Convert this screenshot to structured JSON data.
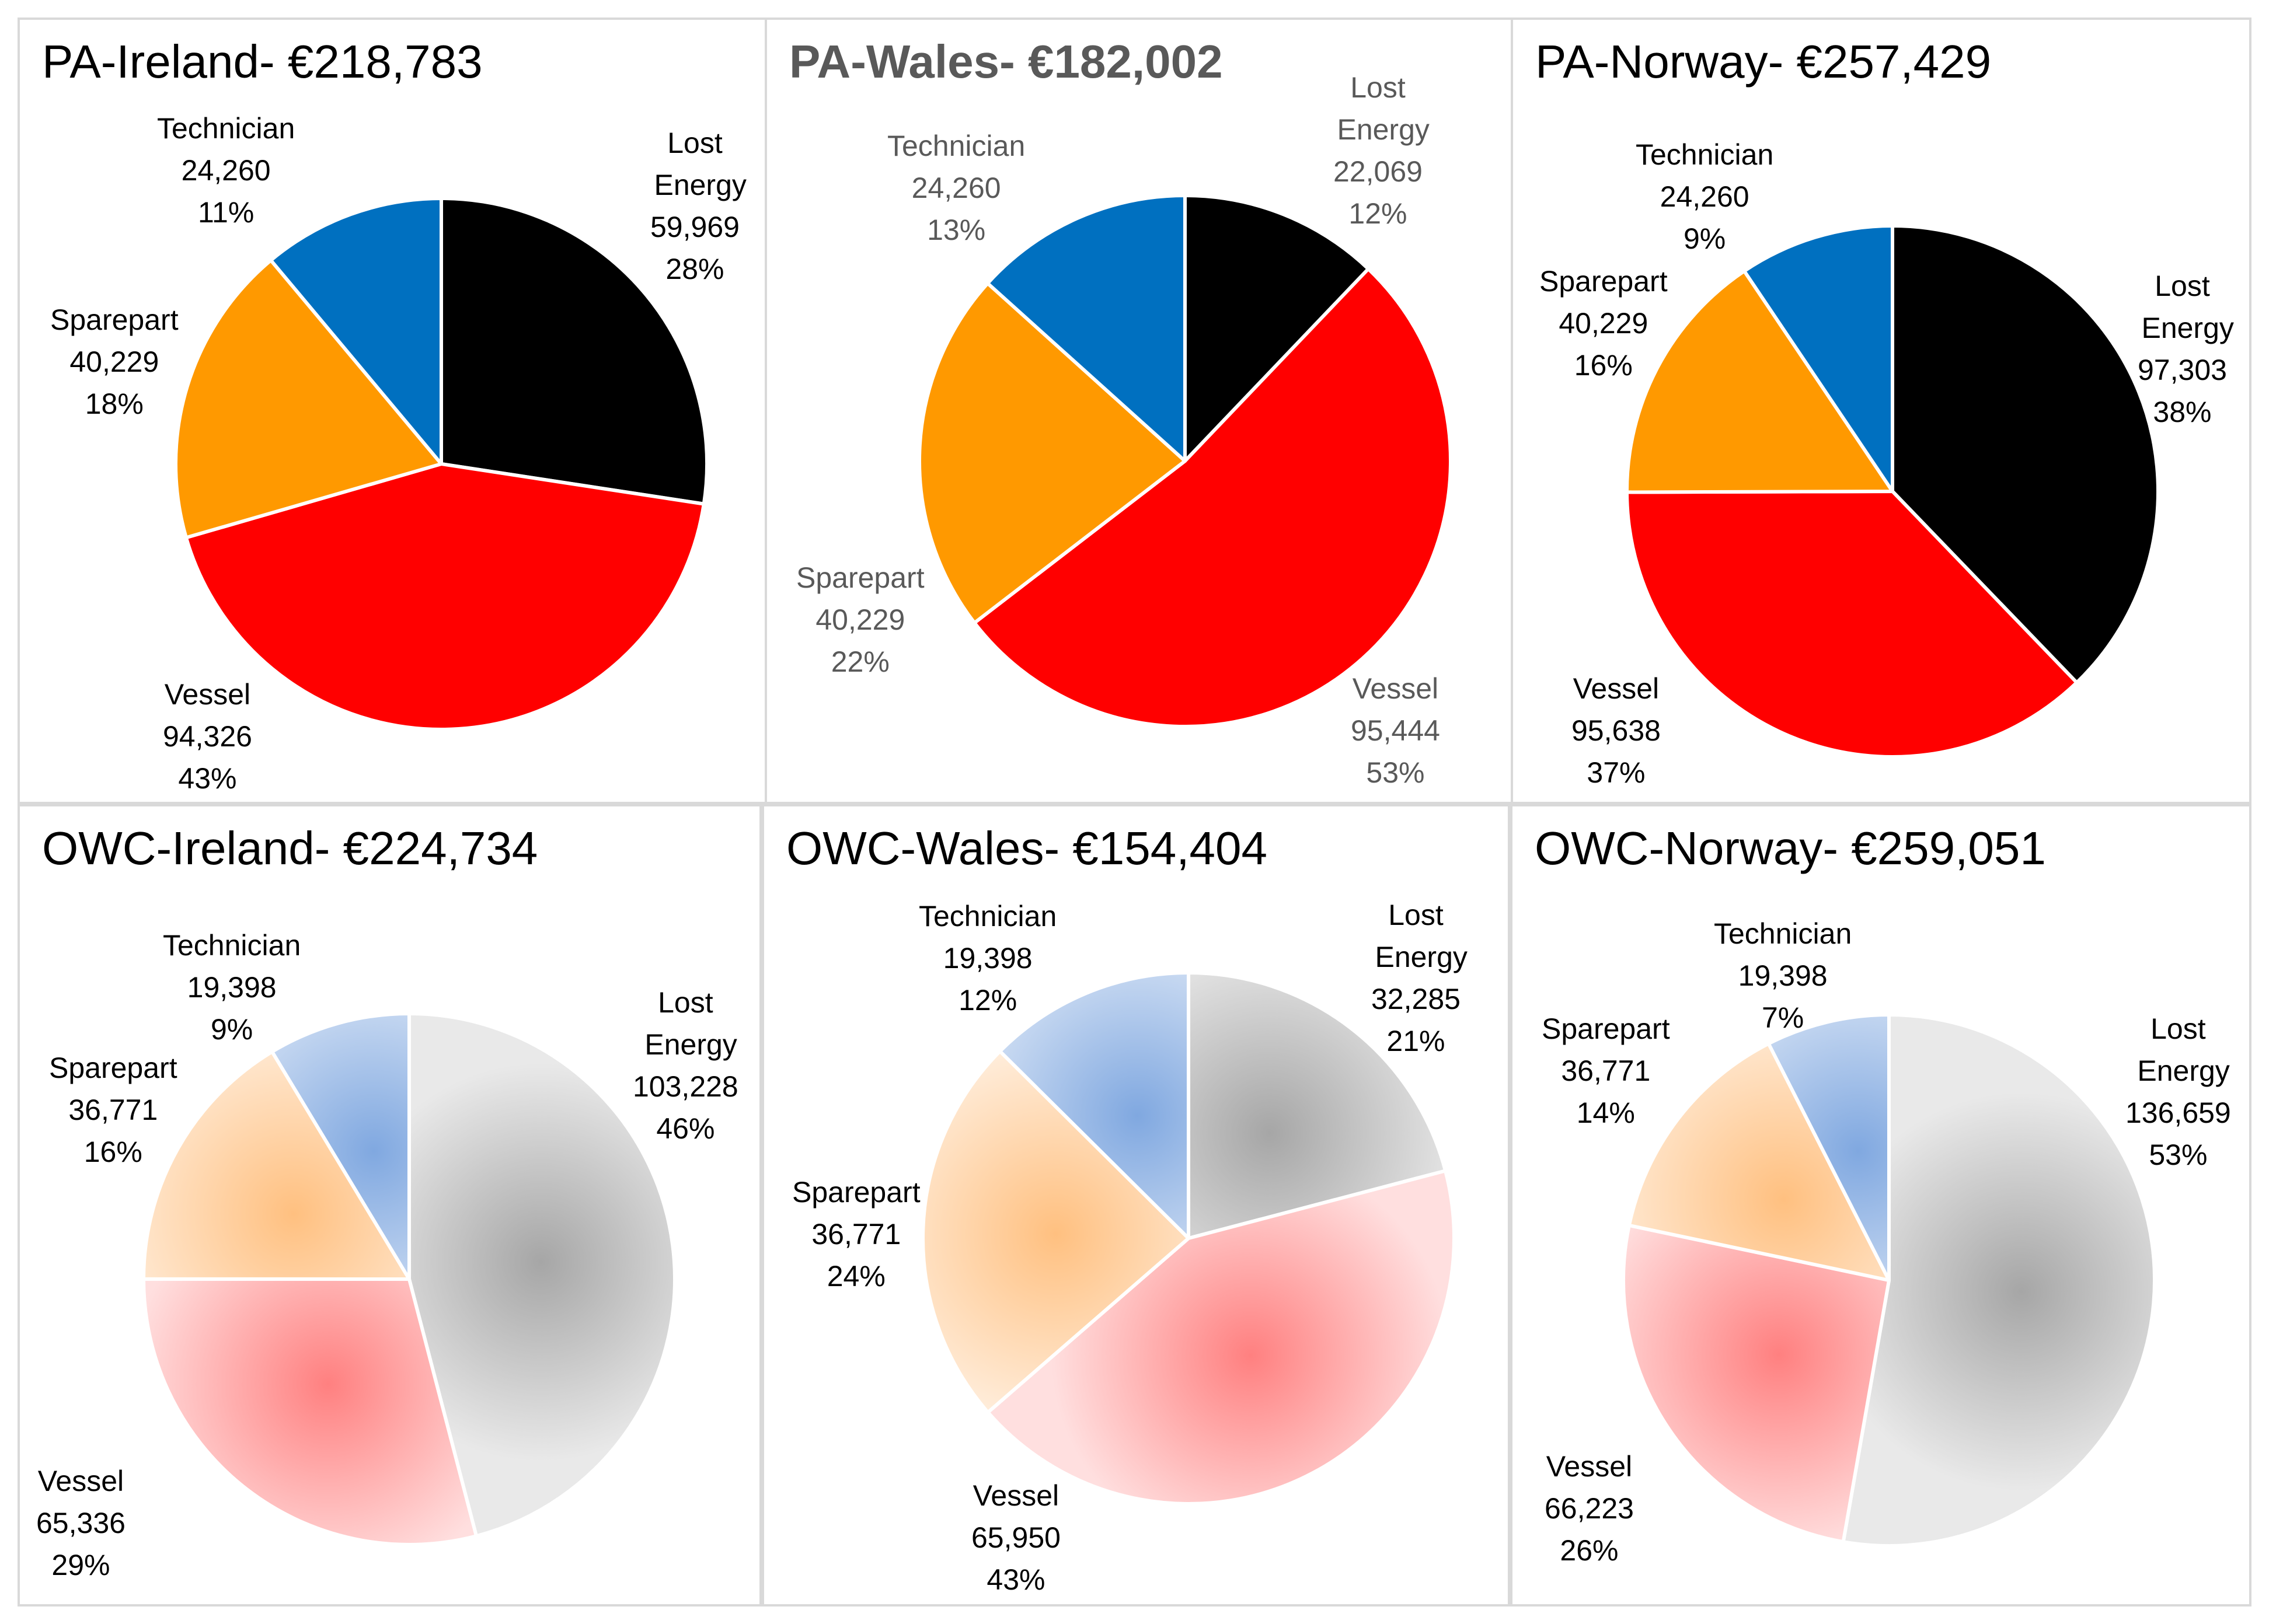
{
  "chart_data": [
    {
      "type": "pie",
      "title": "PA-Ireland- €218,783",
      "slices": [
        {
          "name": "Lost Energy",
          "value": 59969,
          "value_label": "59,969",
          "pct_label": "28%",
          "color": "#000000"
        },
        {
          "name": "Vessel",
          "value": 94326,
          "value_label": "94,326",
          "pct_label": "43%",
          "color": "#ff0000"
        },
        {
          "name": "Sparepart",
          "value": 40229,
          "value_label": "40,229",
          "pct_label": "18%",
          "color": "#ff9900"
        },
        {
          "name": "Technician",
          "value": 24260,
          "value_label": "24,260",
          "pct_label": "11%",
          "color": "#0070c0"
        }
      ]
    },
    {
      "type": "pie",
      "title": "PA-Wales- €182,002",
      "slices": [
        {
          "name": "Lost Energy",
          "value": 22069,
          "value_label": "22,069",
          "pct_label": "12%",
          "color": "#000000"
        },
        {
          "name": "Vessel",
          "value": 95444,
          "value_label": "95,444",
          "pct_label": "53%",
          "color": "#ff0000"
        },
        {
          "name": "Sparepart",
          "value": 40229,
          "value_label": "40,229",
          "pct_label": "22%",
          "color": "#ff9900"
        },
        {
          "name": "Technician",
          "value": 24260,
          "value_label": "24,260",
          "pct_label": "13%",
          "color": "#0070c0"
        }
      ]
    },
    {
      "type": "pie",
      "title": "PA-Norway- €257,429",
      "slices": [
        {
          "name": "Lost Energy",
          "value": 97303,
          "value_label": "97,303",
          "pct_label": "38%",
          "color": "#000000"
        },
        {
          "name": "Vessel",
          "value": 95638,
          "value_label": "95,638",
          "pct_label": "37%",
          "color": "#ff0000"
        },
        {
          "name": "Sparepart",
          "value": 40229,
          "value_label": "40,229",
          "pct_label": "16%",
          "color": "#ff9900"
        },
        {
          "name": "Technician",
          "value": 24260,
          "value_label": "24,260",
          "pct_label": "9%",
          "color": "#0070c0"
        }
      ]
    },
    {
      "type": "pie",
      "title": "OWC-Ireland- €224,734",
      "slices": [
        {
          "name": "Lost Energy",
          "value": 103228,
          "value_label": "103,228",
          "pct_label": "46%",
          "color": "#a6a6a6"
        },
        {
          "name": "Vessel",
          "value": 65336,
          "value_label": "65,336",
          "pct_label": "29%",
          "color": "#ff8080"
        },
        {
          "name": "Sparepart",
          "value": 36771,
          "value_label": "36,771",
          "pct_label": "16%",
          "color": "#ffc080"
        },
        {
          "name": "Technician",
          "value": 19398,
          "value_label": "19,398",
          "pct_label": "9%",
          "color": "#80a8e0"
        }
      ]
    },
    {
      "type": "pie",
      "title": "OWC-Wales- €154,404",
      "slices": [
        {
          "name": "Lost Energy",
          "value": 32285,
          "value_label": "32,285",
          "pct_label": "21%",
          "color": "#a6a6a6"
        },
        {
          "name": "Vessel",
          "value": 65950,
          "value_label": "65,950",
          "pct_label": "43%",
          "color": "#ff8080"
        },
        {
          "name": "Sparepart",
          "value": 36771,
          "value_label": "36,771",
          "pct_label": "24%",
          "color": "#ffc080"
        },
        {
          "name": "Technician",
          "value": 19398,
          "value_label": "19,398",
          "pct_label": "12%",
          "color": "#80a8e0"
        }
      ]
    },
    {
      "type": "pie",
      "title": "OWC-Norway- €259,051",
      "slices": [
        {
          "name": "Lost Energy",
          "value": 136659,
          "value_label": "136,659",
          "pct_label": "53%",
          "color": "#a6a6a6"
        },
        {
          "name": "Vessel",
          "value": 66223,
          "value_label": "66,223",
          "pct_label": "26%",
          "color": "#ff8080"
        },
        {
          "name": "Sparepart",
          "value": 36771,
          "value_label": "36,771",
          "pct_label": "14%",
          "color": "#ffc080"
        },
        {
          "name": "Technician",
          "value": 19398,
          "value_label": "19,398",
          "pct_label": "7%",
          "color": "#80a8e0"
        }
      ]
    }
  ]
}
